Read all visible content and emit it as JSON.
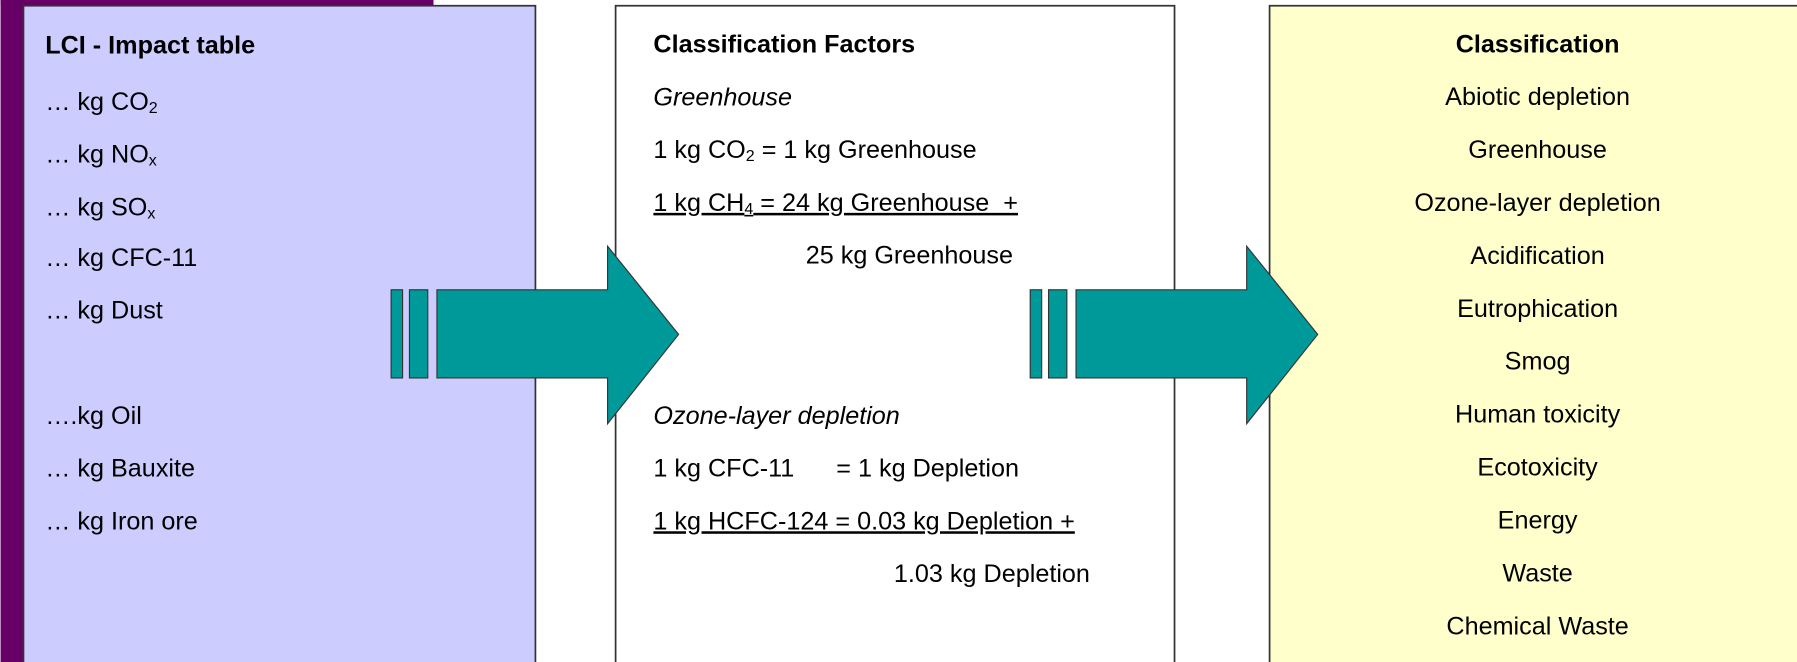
{
  "left": {
    "title": "LCI - Impact table",
    "items": [
      {
        "text": "… kg CO",
        "sub": "2"
      },
      {
        "text": "… kg NO",
        "sub": "x"
      },
      {
        "text": "… kg SO",
        "sub": "x"
      },
      {
        "text": "… kg CFC-11"
      },
      {
        "text": "… kg Dust"
      },
      {
        "text": "….kg Oil"
      },
      {
        "text": "… kg Bauxite"
      },
      {
        "text": "… kg Iron ore"
      }
    ]
  },
  "middle": {
    "title": "Classification Factors",
    "lines": [
      {
        "text": "Greenhouse",
        "style": "italic"
      },
      {
        "text": "1 kg CO",
        "sub": "2",
        "after": " = 1 kg Greenhouse"
      },
      {
        "text": "1 kg CH",
        "sub": "4",
        "after": " = 24 kg Greenhouse  +",
        "style": "underline"
      },
      {
        "text": "25 kg Greenhouse"
      },
      {
        "text": "Ozone-layer depletion",
        "style": "italic"
      },
      {
        "text": "1 kg CFC-11      = 1 kg Depletion"
      },
      {
        "text": "1 kg HCFC-124 = 0.03 kg Depletion +",
        "style": "underline"
      },
      {
        "text": "1.03 kg Depletion"
      }
    ]
  },
  "right": {
    "title": "Classification",
    "items": [
      "Abiotic depletion",
      "Greenhouse",
      "Ozone-layer depletion",
      "Acidification",
      "Eutrophication",
      "Smog",
      "Human toxicity",
      "Ecotoxicity",
      "Energy",
      "Waste",
      "Chemical Waste"
    ]
  }
}
